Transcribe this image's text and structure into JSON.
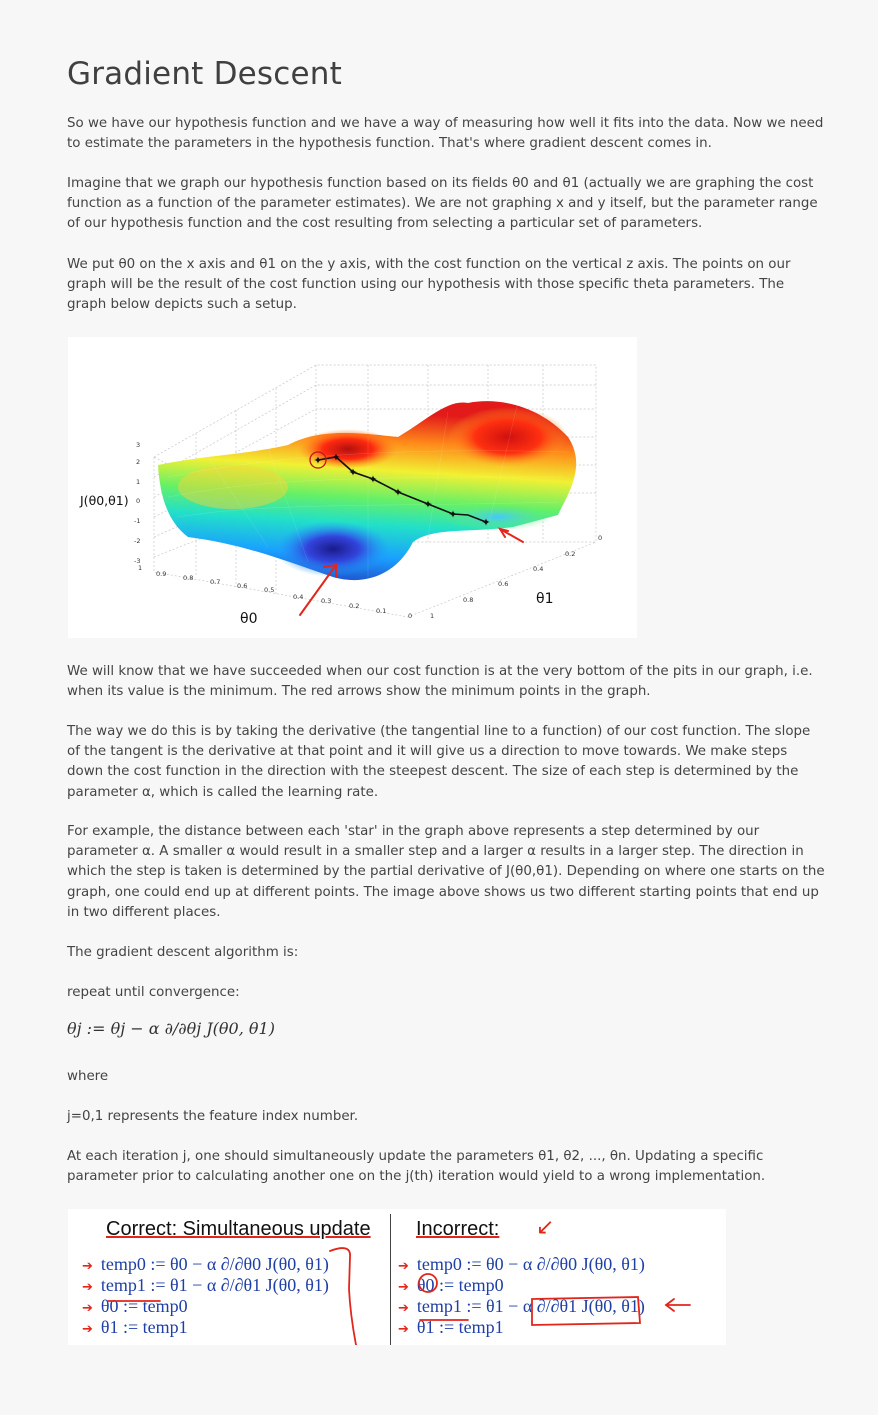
{
  "page": {
    "title": "Gradient Descent",
    "para1": "So we have our hypothesis function and we have a way of measuring how well it fits into the data. Now we need to estimate the parameters in the hypothesis function. That's where gradient descent comes in.",
    "para2": "Imagine that we graph our hypothesis function based on its fields θ0 and θ1 (actually we are graphing the cost function as a function of the parameter estimates). We are not graphing x and y itself, but the parameter range of our hypothesis function and the cost resulting from selecting a particular set of parameters.",
    "para3": "We put θ0 on the x axis and θ1 on the y axis, with the cost function on the vertical z axis. The points on our graph will be the result of the cost function using our hypothesis with those specific theta parameters. The graph below depicts such a setup.",
    "para4": "We will know that we have succeeded when our cost function is at the very bottom of the pits in our graph, i.e. when its value is the minimum. The red arrows show the minimum points in the graph.",
    "para5": "The way we do this is by taking the derivative (the tangential line to a function) of our cost function. The slope of the tangent is the derivative at that point and it will give us a direction to move towards. We make steps down the cost function in the direction with the steepest descent. The size of each step is determined by the parameter α, which is called the learning rate.",
    "para6": "For example, the distance between each 'star' in the graph above represents a step determined by our parameter α. A smaller α would result in a smaller step and a larger α results in a larger step. The direction in which the step is taken is determined by the partial derivative of J(θ0,θ1). Depending on where one starts on the graph, one could end up at different points. The image above shows us two different starting points that end up in two different places.",
    "para7": "The gradient descent algorithm is:",
    "para8": "repeat until convergence:",
    "formula": "θj := θj − α ∂/∂θj J(θ0, θ1)",
    "para9": "where",
    "para10": "j=0,1 represents the feature index number.",
    "para11": "At each iteration j, one should simultaneously update the parameters θ1, θ2, ..., θn. Updating a specific parameter prior to calculating another one on the j(th) iteration would yield to a wrong implementation."
  },
  "figure": {
    "zlabel": "J(θ0,θ1)",
    "xlabel": "θ0",
    "ylabel": "θ1",
    "z_ticks": [
      "3",
      "2",
      "1",
      "0",
      "-1",
      "-2",
      "-3"
    ],
    "x_ticks": [
      "1",
      "0.9",
      "0.8",
      "0.7",
      "0.6",
      "0.5",
      "0.4",
      "0.3",
      "0.2",
      "0.1",
      "0"
    ],
    "y_ticks": [
      "1",
      "0.8",
      "0.6",
      "0.4",
      "0.2",
      "0"
    ]
  },
  "updates": {
    "correct_heading": "Correct: Simultaneous update",
    "incorrect_heading": "Incorrect:",
    "correct_lines": [
      "temp0 := θ0 − α ∂/∂θ0 J(θ0, θ1)",
      "temp1 := θ1 − α ∂/∂θ1 J(θ0, θ1)",
      "θ0 := temp0",
      "θ1 := temp1"
    ],
    "incorrect_lines": [
      "temp0 := θ0 − α ∂/∂θ0 J(θ0, θ1)",
      "θ0 := temp0",
      "temp1 := θ1 − α ∂/∂θ1 J(θ0, θ1)",
      "θ1 := temp1"
    ]
  },
  "colors": {
    "text": "#444444",
    "code_blue": "#1f3fa6",
    "annotation_red": "#e2261c"
  }
}
